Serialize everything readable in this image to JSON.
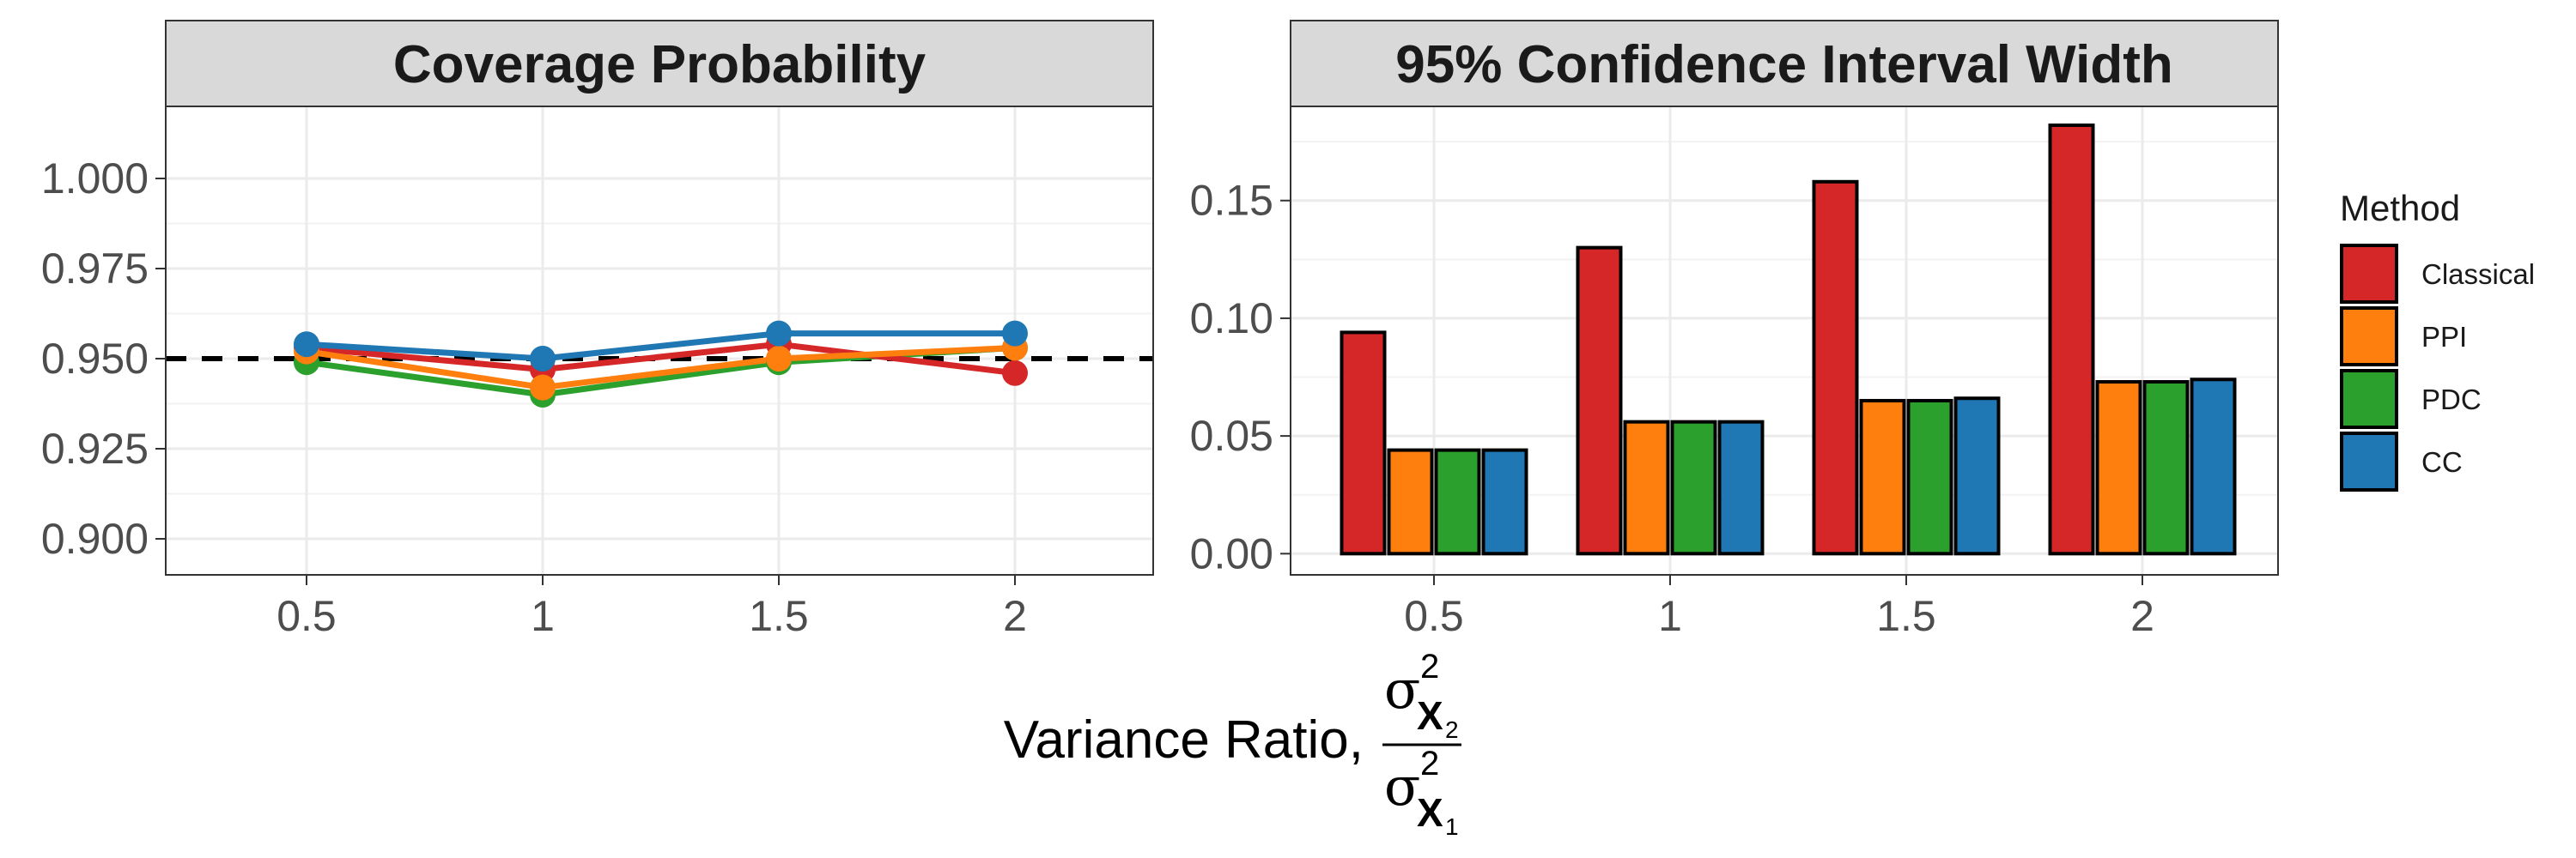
{
  "chart_data": [
    {
      "type": "line",
      "title": "Coverage Probability",
      "categories": [
        "0.5",
        "1",
        "1.5",
        "2"
      ],
      "ylim": [
        0.89,
        1.02
      ],
      "yticks": [
        "0.900",
        "0.925",
        "0.950",
        "0.975",
        "1.000"
      ],
      "ytick_values": [
        0.9,
        0.925,
        0.95,
        0.975,
        1.0
      ],
      "reference_line": 0.95,
      "series": [
        {
          "name": "PDC",
          "values": [
            0.949,
            0.94,
            0.949,
            0.953
          ]
        },
        {
          "name": "Classical",
          "values": [
            0.953,
            0.947,
            0.954,
            0.946
          ]
        },
        {
          "name": "PPI",
          "values": [
            0.952,
            0.942,
            0.95,
            0.953
          ]
        },
        {
          "name": "CC",
          "values": [
            0.954,
            0.95,
            0.957,
            0.957
          ]
        }
      ]
    },
    {
      "type": "bar",
      "title": "95% Confidence Interval Width",
      "categories": [
        "0.5",
        "1",
        "1.5",
        "2"
      ],
      "ylim": [
        -0.009,
        0.19
      ],
      "yticks": [
        "0.00",
        "0.05",
        "0.10",
        "0.15"
      ],
      "ytick_values": [
        0,
        0.05,
        0.1,
        0.15
      ],
      "series": [
        {
          "name": "Classical",
          "values": [
            0.094,
            0.13,
            0.158,
            0.182
          ]
        },
        {
          "name": "PPI",
          "values": [
            0.044,
            0.056,
            0.065,
            0.073
          ]
        },
        {
          "name": "PDC",
          "values": [
            0.044,
            0.056,
            0.065,
            0.073
          ]
        },
        {
          "name": "CC",
          "values": [
            0.044,
            0.056,
            0.066,
            0.074
          ]
        }
      ]
    }
  ],
  "legend": {
    "title": "Method",
    "items": [
      {
        "name": "Classical",
        "color": "#d62728"
      },
      {
        "name": "PPI",
        "color": "#ff7f0e"
      },
      {
        "name": "PDC",
        "color": "#2ca02c"
      },
      {
        "name": "CC",
        "color": "#1f77b4"
      }
    ]
  },
  "xlabel": {
    "prefix": "Variance Ratio,",
    "sigma": "σ",
    "var": "X",
    "sup": "2",
    "num_sub": "2",
    "den_sub": "1"
  }
}
